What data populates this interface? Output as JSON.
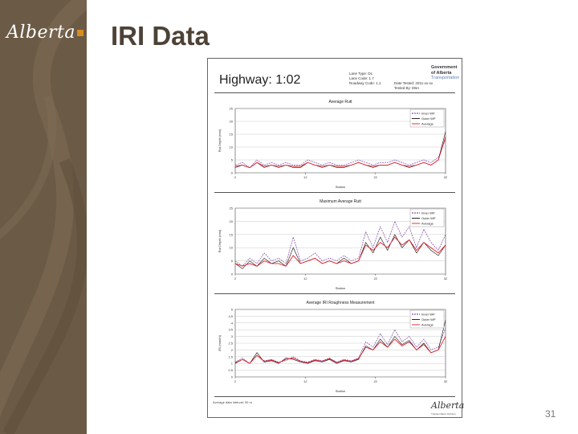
{
  "brand": {
    "logo_text": "Alberta"
  },
  "slide": {
    "title": "IRI Data",
    "page_number": "31"
  },
  "document": {
    "highway": "Highway:  1:02",
    "meta_left": [
      "Lane Type: DL",
      "Lane Code: 1.7",
      "Roadway Code: 1.1"
    ],
    "meta_right": [
      "Date Tested: 2011-xx-xx",
      "Tested By: EBA"
    ],
    "gov_line1": "Government",
    "gov_line2": "of Alberta",
    "gov_line3": "Transportation",
    "footer_note": "Average data interval: 50 m",
    "footer_logo": "Alberta",
    "footer_sub": "Transportation Division"
  },
  "colors": {
    "inner": "#6a2a9c",
    "outer": "#111111",
    "average": "#e0202a",
    "sidebar": "#6b5a45"
  },
  "chart_data": [
    {
      "type": "line",
      "title": "Average Rutt",
      "xlabel": "Station",
      "ylabel": "Rut Depth (mm)",
      "ylim": [
        0,
        25
      ],
      "yticks": [
        0,
        5,
        10,
        15,
        20,
        25
      ],
      "xticks": [
        "2",
        "12",
        "22",
        "32"
      ],
      "xlim": [
        2,
        32
      ],
      "legend": "top-right",
      "series": [
        {
          "name": "Inner WP",
          "color": "#6a2a9c",
          "values": [
            3,
            4,
            2,
            5,
            3,
            4,
            3,
            4,
            3,
            3,
            5,
            4,
            3,
            4,
            3,
            3,
            4,
            5,
            4,
            3,
            4,
            4,
            5,
            4,
            3,
            4,
            5,
            4,
            6,
            13
          ]
        },
        {
          "name": "Outer WP",
          "color": "#111111",
          "values": [
            2,
            3,
            2,
            4,
            2,
            3,
            2,
            3,
            2,
            2,
            4,
            3,
            2,
            3,
            2,
            2,
            3,
            4,
            3,
            2,
            3,
            3,
            4,
            3,
            2,
            3,
            4,
            3,
            5,
            16
          ]
        },
        {
          "name": "Average",
          "color": "#e0202a",
          "values": [
            2.5,
            3,
            2,
            4,
            2.5,
            3,
            2.5,
            3,
            2.5,
            2.5,
            4,
            3,
            2.5,
            3,
            2.5,
            2.5,
            3,
            4,
            3,
            2.5,
            3,
            3,
            4,
            3,
            2.5,
            3,
            4,
            3,
            5,
            14
          ]
        }
      ]
    },
    {
      "type": "line",
      "title": "Maximum Average Rutt",
      "xlabel": "Station",
      "ylabel": "Rut Depth (mm)",
      "ylim": [
        0,
        25
      ],
      "yticks": [
        0,
        5,
        10,
        15,
        20,
        25
      ],
      "xticks": [
        "2",
        "12",
        "22",
        "32"
      ],
      "xlim": [
        2,
        32
      ],
      "legend": "top-right",
      "series": [
        {
          "name": "Inner WP",
          "color": "#6a2a9c",
          "values": [
            5,
            3,
            6,
            4,
            8,
            5,
            6,
            4,
            14,
            5,
            6,
            8,
            5,
            6,
            5,
            7,
            5,
            6,
            16,
            10,
            18,
            12,
            20,
            14,
            18,
            10,
            17,
            12,
            9,
            15
          ]
        },
        {
          "name": "Outer WP",
          "color": "#111111",
          "values": [
            4,
            2,
            5,
            3,
            6,
            4,
            5,
            3,
            10,
            4,
            5,
            6,
            4,
            5,
            4,
            6,
            4,
            5,
            12,
            8,
            14,
            9,
            15,
            10,
            13,
            8,
            12,
            9,
            7,
            11
          ]
        },
        {
          "name": "Average",
          "color": "#e0202a",
          "values": [
            4,
            3,
            4,
            3,
            5,
            4,
            4,
            3,
            7,
            4,
            5,
            6,
            4,
            5,
            4,
            5,
            4,
            5,
            11,
            9,
            12,
            10,
            14,
            11,
            13,
            9,
            12,
            10,
            8,
            11
          ]
        }
      ]
    },
    {
      "type": "line",
      "title": "Average IRI Roughness Measurement",
      "xlabel": "Station",
      "ylabel": "IRI (mm/m)",
      "ylim": [
        0,
        5
      ],
      "yticks": [
        0,
        0.5,
        1,
        1.5,
        2,
        2.5,
        3,
        3.5,
        4,
        4.5,
        5
      ],
      "xticks": [
        "2",
        "12",
        "22",
        "32"
      ],
      "xlim": [
        2,
        32
      ],
      "legend": "top-right",
      "series": [
        {
          "name": "Inner WP",
          "color": "#6a2a9c",
          "values": [
            1.1,
            1.4,
            1,
            1.6,
            1.2,
            1.3,
            1.1,
            1.2,
            1.5,
            1.2,
            1.1,
            1.3,
            1.2,
            1.4,
            1.1,
            1.3,
            1.2,
            1.4,
            2.6,
            2.2,
            3.2,
            2.4,
            3.5,
            2.6,
            3.0,
            2.2,
            2.8,
            2.0,
            2.2,
            3.6
          ]
        },
        {
          "name": "Outer WP",
          "color": "#111111",
          "values": [
            1.0,
            1.3,
            1.0,
            1.8,
            1.1,
            1.2,
            1.0,
            1.4,
            1.3,
            1.1,
            1.0,
            1.2,
            1.1,
            1.3,
            1.0,
            1.2,
            1.1,
            1.3,
            2.3,
            2.0,
            2.8,
            2.2,
            3.0,
            2.4,
            2.7,
            2.0,
            2.5,
            1.8,
            2.0,
            4.2
          ]
        },
        {
          "name": "Average",
          "color": "#e0202a",
          "values": [
            1.05,
            1.3,
            1.0,
            1.6,
            1.15,
            1.25,
            1.05,
            1.3,
            1.4,
            1.15,
            1.05,
            1.25,
            1.15,
            1.35,
            1.05,
            1.25,
            1.15,
            1.35,
            2.2,
            2.0,
            2.6,
            2.2,
            2.8,
            2.3,
            2.6,
            2.0,
            2.4,
            1.8,
            2.0,
            3.0
          ]
        }
      ]
    }
  ]
}
